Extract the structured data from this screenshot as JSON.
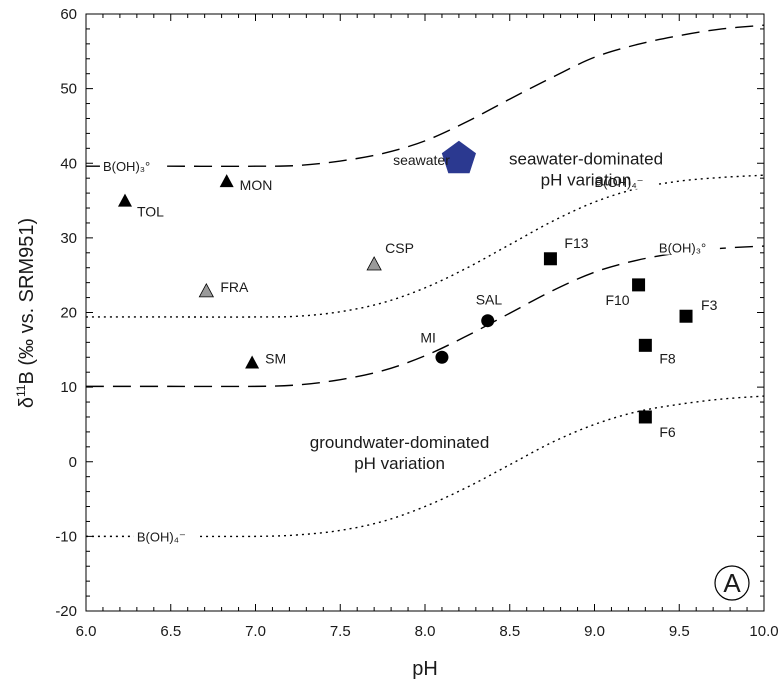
{
  "chart_data": {
    "type": "scatter",
    "xlabel": "pH",
    "ylabel": "δ¹¹B (‰ vs. SRM951)",
    "xlim": [
      6.0,
      10.0
    ],
    "ylim": [
      -20,
      60
    ],
    "xticks": [
      "6.0",
      "6.5",
      "7.0",
      "7.5",
      "8.0",
      "8.5",
      "9.0",
      "9.5",
      "10.0"
    ],
    "yticks": [
      "-20",
      "-10",
      "0",
      "10",
      "20",
      "30",
      "40",
      "50",
      "60"
    ],
    "panel_label": "A",
    "region_labels": [
      {
        "line1": "seawater-dominated",
        "line2": "pH variation",
        "x": 8.95,
        "y": 38.5
      },
      {
        "line1": "groundwater-dominated",
        "line2": "pH variation",
        "x": 7.85,
        "y": 0.5
      }
    ],
    "curves": [
      {
        "label": "B(OH)₃°",
        "style": "dashed",
        "label_x": 6.1,
        "label_y": 39.6,
        "points": [
          [
            6.0,
            39.6
          ],
          [
            6.5,
            39.6
          ],
          [
            7.0,
            39.6
          ],
          [
            7.25,
            39.7
          ],
          [
            7.5,
            40.3
          ],
          [
            7.75,
            41.3
          ],
          [
            8.0,
            43.0
          ],
          [
            8.25,
            45.6
          ],
          [
            8.5,
            48.6
          ],
          [
            8.75,
            51.5
          ],
          [
            9.0,
            54.2
          ],
          [
            9.25,
            55.9
          ],
          [
            9.5,
            57.1
          ],
          [
            9.75,
            58.0
          ],
          [
            10.0,
            58.5
          ]
        ]
      },
      {
        "label": "B(OH)₄⁻",
        "style": "dotted",
        "label_x": 9.0,
        "label_y": 37.5,
        "points": [
          [
            6.0,
            19.4
          ],
          [
            6.5,
            19.4
          ],
          [
            7.0,
            19.4
          ],
          [
            7.25,
            19.5
          ],
          [
            7.5,
            20.1
          ],
          [
            7.75,
            21.3
          ],
          [
            8.0,
            23.3
          ],
          [
            8.25,
            26.0
          ],
          [
            8.5,
            29.1
          ],
          [
            8.75,
            32.2
          ],
          [
            9.0,
            34.8
          ],
          [
            9.25,
            36.6
          ],
          [
            9.5,
            37.6
          ],
          [
            9.75,
            38.1
          ],
          [
            10.0,
            38.4
          ]
        ]
      },
      {
        "label": "B(OH)₃°",
        "style": "dashed",
        "label_x": 9.38,
        "label_y": 28.7,
        "points": [
          [
            6.0,
            10.1
          ],
          [
            6.5,
            10.1
          ],
          [
            7.0,
            10.1
          ],
          [
            7.25,
            10.3
          ],
          [
            7.5,
            11.0
          ],
          [
            7.75,
            12.2
          ],
          [
            8.0,
            14.2
          ],
          [
            8.25,
            16.9
          ],
          [
            8.5,
            19.9
          ],
          [
            8.75,
            22.9
          ],
          [
            9.0,
            25.4
          ],
          [
            9.25,
            27.0
          ],
          [
            9.5,
            28.0
          ],
          [
            9.75,
            28.6
          ],
          [
            10.0,
            28.9
          ]
        ]
      },
      {
        "label": "B(OH)₄⁻",
        "style": "dotted",
        "label_x": 6.3,
        "label_y": -10.0,
        "points": [
          [
            6.0,
            -10.0
          ],
          [
            6.5,
            -10.0
          ],
          [
            7.0,
            -10.0
          ],
          [
            7.25,
            -9.8
          ],
          [
            7.5,
            -9.2
          ],
          [
            7.75,
            -8.0
          ],
          [
            8.0,
            -6.0
          ],
          [
            8.25,
            -3.4
          ],
          [
            8.5,
            -0.4
          ],
          [
            8.75,
            2.6
          ],
          [
            9.0,
            5.0
          ],
          [
            9.25,
            6.7
          ],
          [
            9.5,
            7.7
          ],
          [
            9.75,
            8.4
          ],
          [
            10.0,
            8.8
          ]
        ]
      }
    ],
    "series": [
      {
        "marker": "triangle",
        "color": "#000000",
        "points": [
          {
            "label": "TOL",
            "x": 6.23,
            "y": 35.0
          },
          {
            "label": "MON",
            "x": 6.83,
            "y": 37.6
          },
          {
            "label": "SM",
            "x": 6.98,
            "y": 13.3
          }
        ]
      },
      {
        "marker": "triangle",
        "color": "#9a9a9a",
        "points": [
          {
            "label": "FRA",
            "x": 6.71,
            "y": 22.9
          },
          {
            "label": "CSP",
            "x": 7.7,
            "y": 26.5
          }
        ]
      },
      {
        "marker": "circle",
        "color": "#000000",
        "points": [
          {
            "label": "MI",
            "x": 8.1,
            "y": 14.0
          },
          {
            "label": "SAL",
            "x": 8.37,
            "y": 18.9
          }
        ]
      },
      {
        "marker": "square",
        "color": "#000000",
        "points": [
          {
            "label": "F13",
            "x": 8.74,
            "y": 27.2
          },
          {
            "label": "F10",
            "x": 9.26,
            "y": 23.7
          },
          {
            "label": "F3",
            "x": 9.54,
            "y": 19.5
          },
          {
            "label": "F8",
            "x": 9.3,
            "y": 15.6
          },
          {
            "label": "F6",
            "x": 9.3,
            "y": 6.0
          }
        ]
      },
      {
        "marker": "pentagon",
        "color": "#2b3990",
        "points": [
          {
            "label": "seawater",
            "x": 8.2,
            "y": 40.6
          }
        ]
      }
    ]
  }
}
